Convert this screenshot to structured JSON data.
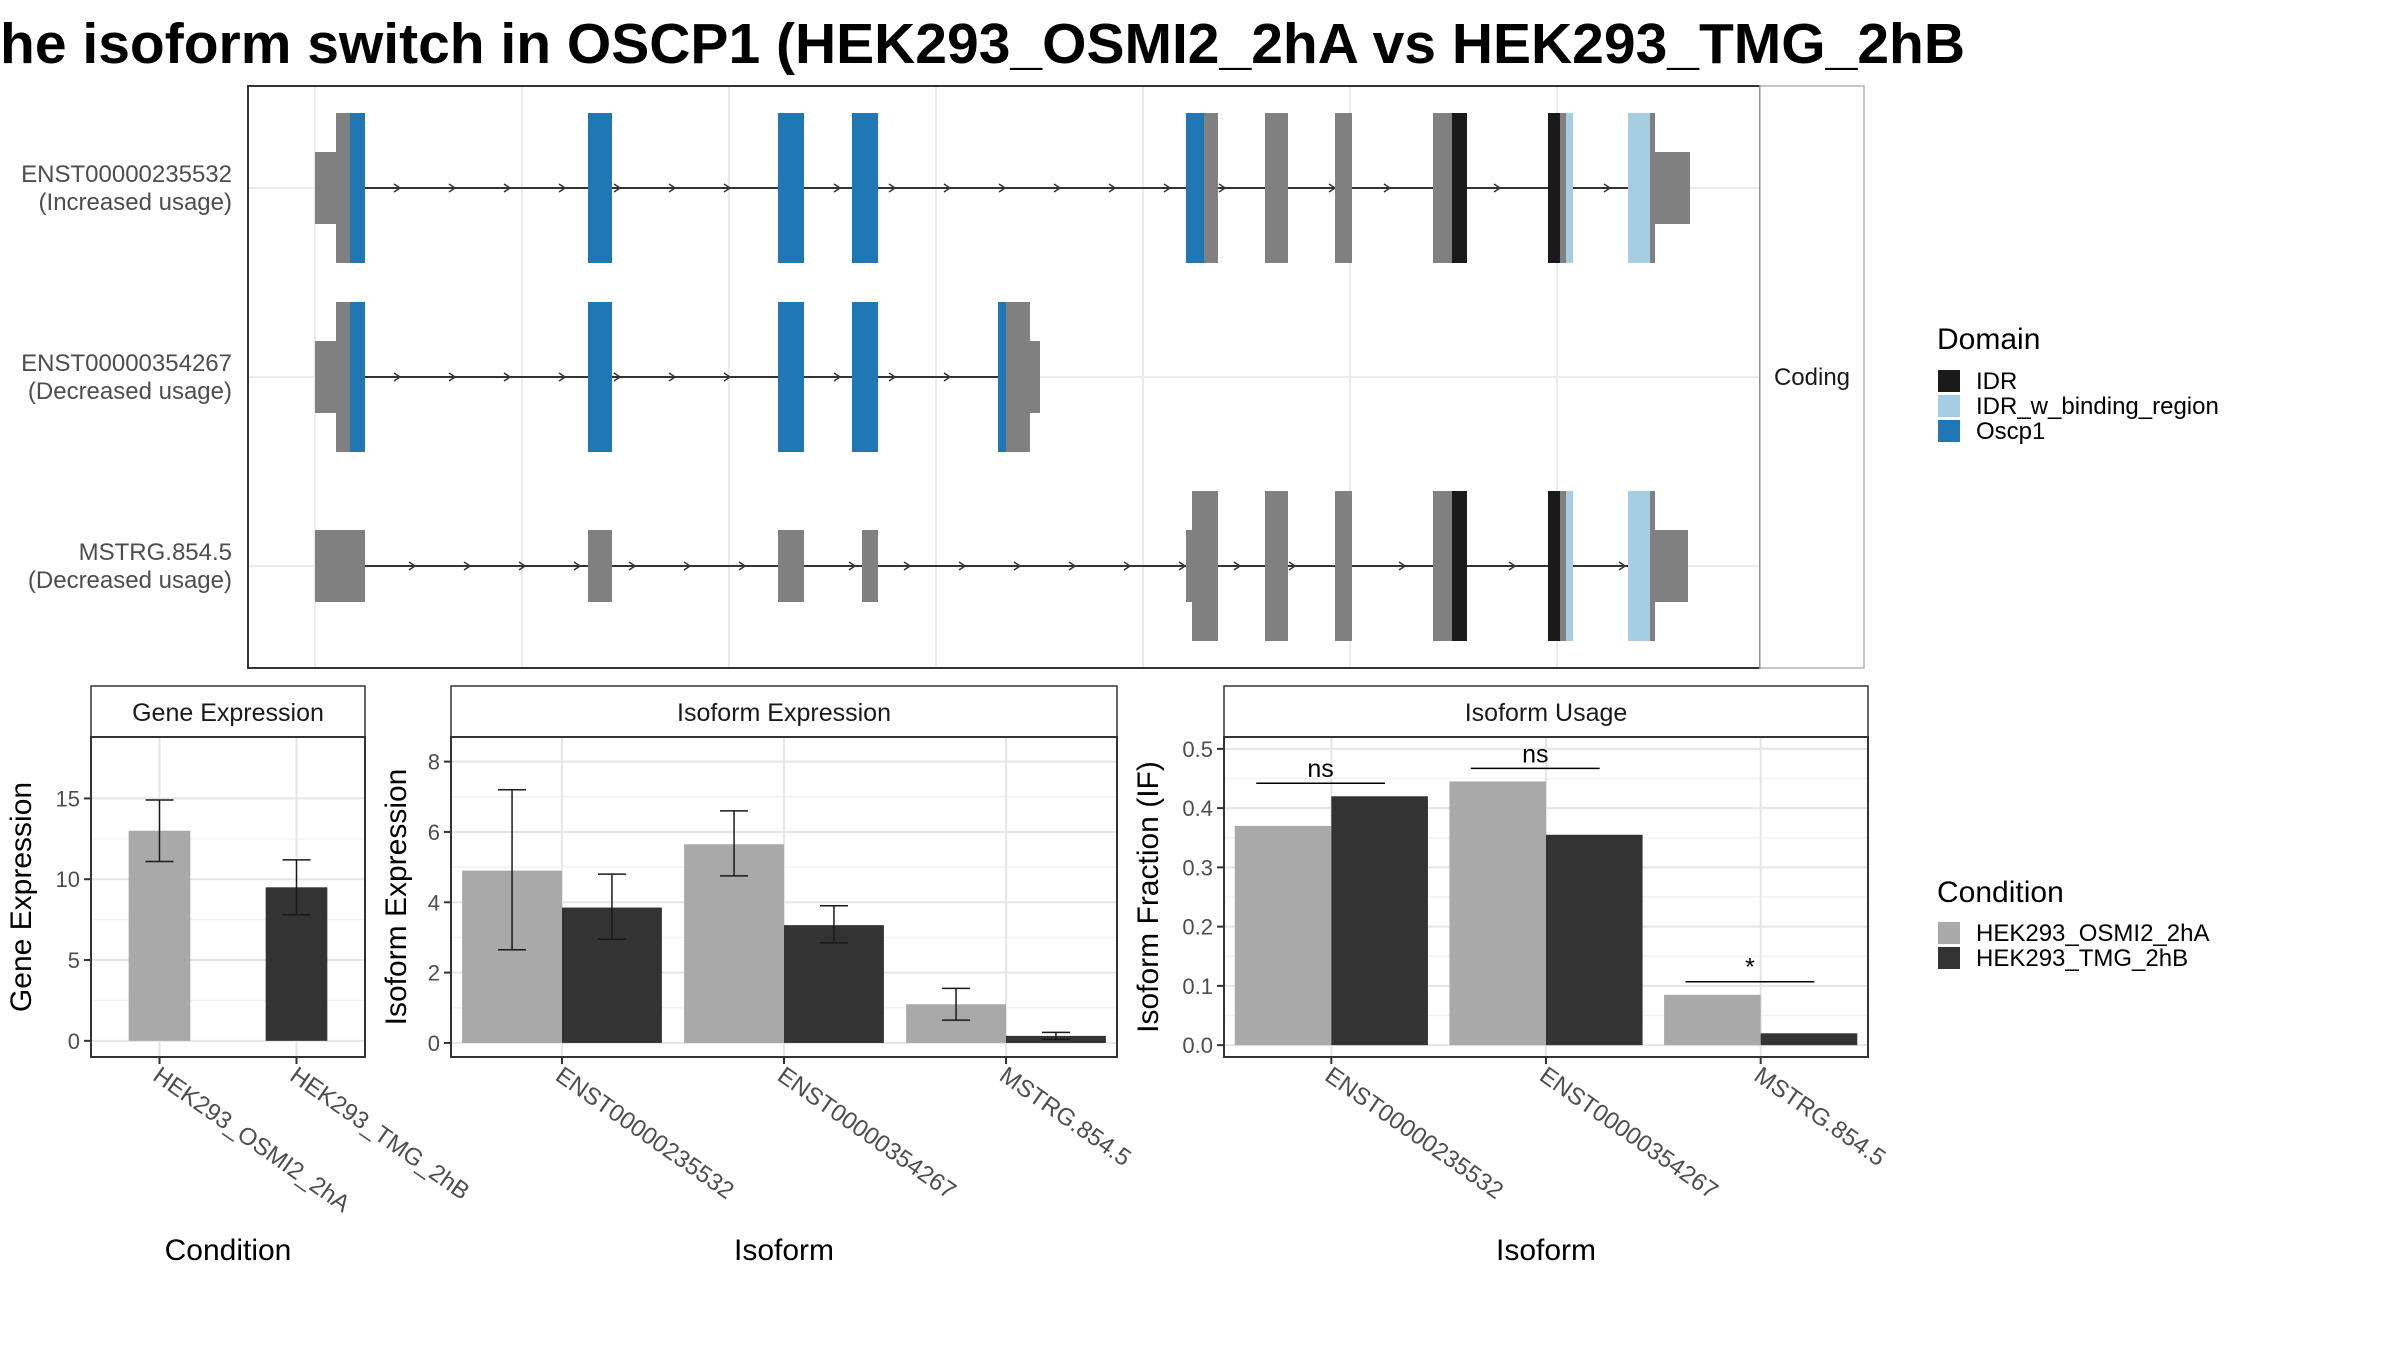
{
  "title": "he isoform switch in OSCP1 (HEK293_OSMI2_2hA vs HEK293_TMG_2hB",
  "colors": {
    "exon_plain": "#808080",
    "cond1": "#a9a9a9",
    "cond2": "#333333",
    "domain_colors": {
      "IDR": "#1a1a1a",
      "IDR_w_binding_region": "#a6cee3",
      "Oscp1": "#1f78b4"
    }
  },
  "chart_data": [
    {
      "type": "diagram",
      "panel": "transcript-structure",
      "strip_label": "Coding",
      "legend": {
        "title": "Domain",
        "placement": "right",
        "entries": [
          "IDR",
          "IDR_w_binding_region",
          "Oscp1"
        ]
      },
      "transcripts": [
        {
          "id": "ENST00000235532",
          "status": "(Increased usage)"
        },
        {
          "id": "ENST00000354267",
          "status": "(Decreased usage)"
        },
        {
          "id": "MSTRG.854.5",
          "status": "(Decreased usage)"
        }
      ]
    },
    {
      "type": "bar",
      "panel": "gene-expression",
      "strip_title": "Gene Expression",
      "xlabel": "Condition",
      "ylabel": "Gene Expression",
      "ylim": [
        -1,
        18.8
      ],
      "yticks": [
        0,
        5,
        10,
        15
      ],
      "categories": [
        "HEK293_OSMI2_2hA",
        "HEK293_TMG_2hB"
      ],
      "values": [
        13.0,
        9.5
      ],
      "errors": [
        [
          11.1,
          14.9
        ],
        [
          7.8,
          11.2
        ]
      ],
      "grid": true
    },
    {
      "type": "bar",
      "panel": "isoform-expression",
      "strip_title": "Isoform Expression",
      "xlabel": "Isoform",
      "ylabel": "Isoform Expression",
      "ylim": [
        -0.4,
        8.7
      ],
      "yticks": [
        0,
        2,
        4,
        6,
        8
      ],
      "categories": [
        "ENST00000235532",
        "ENST00000354267",
        "MSTRG.854.5"
      ],
      "series": [
        {
          "name": "HEK293_OSMI2_2hA",
          "values": [
            4.9,
            5.65,
            1.1
          ],
          "errors": [
            [
              2.65,
              7.2
            ],
            [
              4.75,
              6.6
            ],
            [
              0.65,
              1.55
            ]
          ]
        },
        {
          "name": "HEK293_TMG_2hB",
          "values": [
            3.85,
            3.35,
            0.2
          ],
          "errors": [
            [
              2.95,
              4.8
            ],
            [
              2.85,
              3.9
            ],
            [
              0.1,
              0.3
            ]
          ]
        }
      ],
      "grid": true
    },
    {
      "type": "bar",
      "panel": "isoform-usage",
      "strip_title": "Isoform Usage",
      "xlabel": "Isoform",
      "ylabel": "Isoform Fraction (IF)",
      "ylim": [
        -0.02,
        0.52
      ],
      "yticks": [
        0.0,
        0.1,
        0.2,
        0.3,
        0.4,
        0.5
      ],
      "categories": [
        "ENST00000235532",
        "ENST00000354267",
        "MSTRG.854.5"
      ],
      "series": [
        {
          "name": "HEK293_OSMI2_2hA",
          "values": [
            0.37,
            0.445,
            0.085
          ]
        },
        {
          "name": "HEK293_TMG_2hB",
          "values": [
            0.42,
            0.355,
            0.02
          ]
        }
      ],
      "significance": [
        "ns",
        "ns",
        "*"
      ],
      "grid": true
    }
  ],
  "condition_legend": {
    "title": "Condition",
    "placement": "right",
    "entries": [
      "HEK293_OSMI2_2hA",
      "HEK293_TMG_2hB"
    ]
  }
}
